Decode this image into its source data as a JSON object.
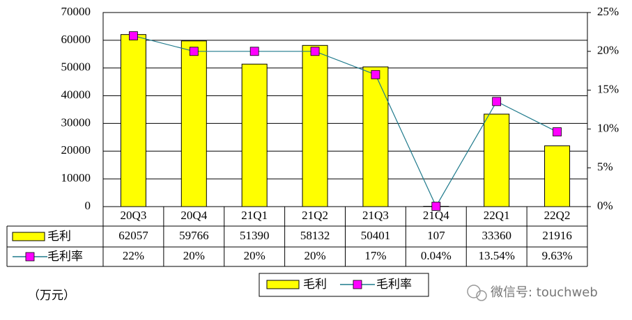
{
  "chart_data": {
    "type": "bar",
    "categories": [
      "20Q3",
      "20Q4",
      "21Q1",
      "21Q2",
      "21Q3",
      "21Q4",
      "22Q1",
      "22Q2"
    ],
    "series": [
      {
        "name": "毛利",
        "type": "bar",
        "color": "#ffff00",
        "values": [
          62057,
          59766,
          51390,
          58132,
          50401,
          107,
          33360,
          21916
        ]
      },
      {
        "name": "毛利率",
        "type": "line",
        "axis": "y2",
        "color": "#1f7a8c",
        "marker_color": "#ff00ff",
        "values": [
          22,
          20,
          20,
          20,
          17,
          0.04,
          13.54,
          9.63
        ],
        "value_labels": [
          "22%",
          "20%",
          "20%",
          "20%",
          "17%",
          "0.04%",
          "13.54%",
          "9.63%"
        ]
      }
    ],
    "ylim": [
      0,
      70000
    ],
    "yticks": [
      0,
      10000,
      20000,
      30000,
      40000,
      50000,
      60000,
      70000
    ],
    "y2lim": [
      0,
      25
    ],
    "y2ticks": [
      {
        "value": 0,
        "label": "0%"
      },
      {
        "value": 5,
        "label": "5%"
      },
      {
        "value": 10,
        "label": "10%"
      },
      {
        "value": 15,
        "label": "15%"
      },
      {
        "value": 20,
        "label": "20%"
      },
      {
        "value": 25,
        "label": "25%"
      }
    ],
    "grid": true,
    "unit_label": "（万元）",
    "watermark": "微信号: touchweb"
  }
}
